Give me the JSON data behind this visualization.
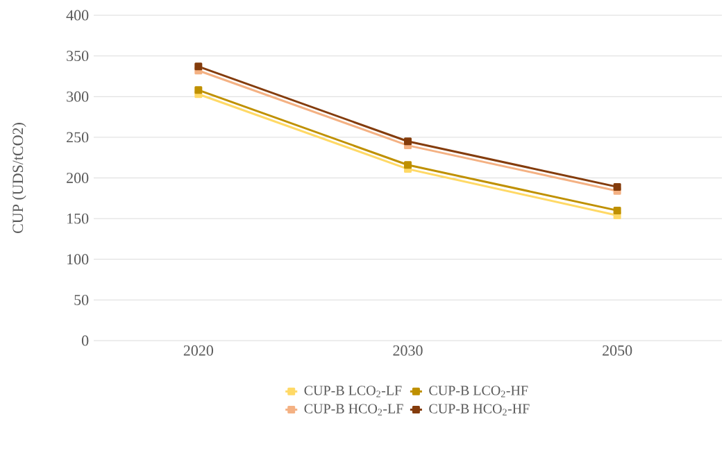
{
  "chart_data": {
    "type": "line",
    "ylabel": "CUP (UDS/tCO2)",
    "categories": [
      "2020",
      "2030",
      "2050"
    ],
    "series": [
      {
        "name": "CUP-B LCO$_{2}$-LF",
        "color": "#ffd966",
        "values": [
          303,
          211,
          154
        ]
      },
      {
        "name": "CUP-B LCO$_{2}$-HF",
        "color": "#bf9000",
        "values": [
          308,
          216,
          160
        ]
      },
      {
        "name": "CUP-B HCO$_{2}$-LF",
        "color": "#f4b183",
        "values": [
          332,
          240,
          184
        ]
      },
      {
        "name": "CUP-B HCO$_{2}$-HF",
        "color": "#843c0c",
        "values": [
          337,
          245,
          189
        ]
      }
    ],
    "ylim": [
      0,
      400
    ],
    "yticks": [
      0,
      50,
      100,
      150,
      200,
      250,
      300,
      350,
      400
    ],
    "grid": "y",
    "legend": "bottom",
    "marker": "square",
    "line_style": "solid"
  }
}
